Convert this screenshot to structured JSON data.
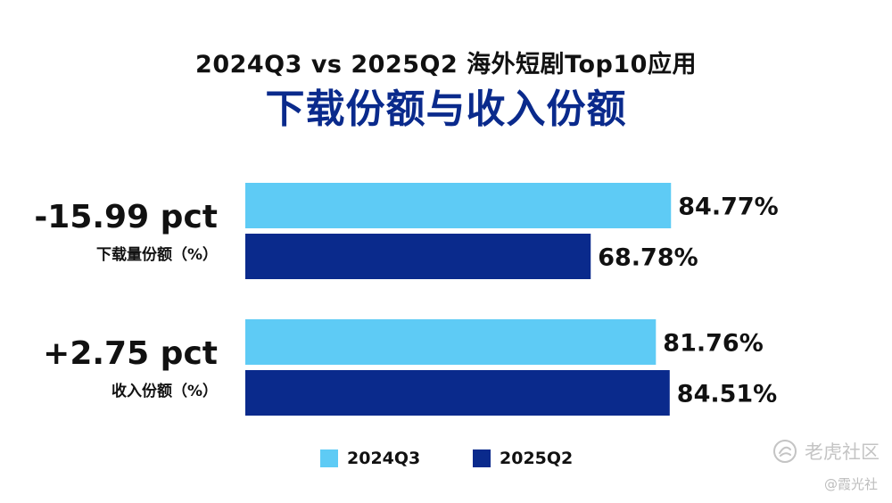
{
  "header": {
    "title": "2024Q3 vs 2025Q2 海外短剧Top10应用",
    "subtitle": "下载份额与收入份额"
  },
  "colors": {
    "series_2024Q3": "#5ecbf5",
    "series_2025Q2": "#0a2a8c",
    "title_accent": "#0a2a8c",
    "text_dark": "#111111",
    "watermark": "#c4c4c4"
  },
  "chart_data": {
    "type": "bar",
    "orientation": "horizontal",
    "title": "2024Q3 vs 2025Q2 海外短剧Top10应用",
    "subtitle": "下载份额与收入份额",
    "categories": [
      "下载量份额（%）",
      "收入份额（%）"
    ],
    "category_changes": [
      "-15.99 pct",
      "+2.75 pct"
    ],
    "series": [
      {
        "name": "2024Q3",
        "values": [
          84.77,
          81.76
        ],
        "labels": [
          "84.77%",
          "81.76%"
        ]
      },
      {
        "name": "2025Q2",
        "values": [
          68.78,
          84.51
        ],
        "labels": [
          "68.78%",
          "84.51%"
        ]
      }
    ],
    "xlim": [
      0,
      100
    ],
    "grid": false,
    "legend_position": "bottom-center"
  },
  "watermark": {
    "brand": "老虎社区",
    "handle": "@霞光社",
    "icon": "tiger-community-logo-icon"
  }
}
